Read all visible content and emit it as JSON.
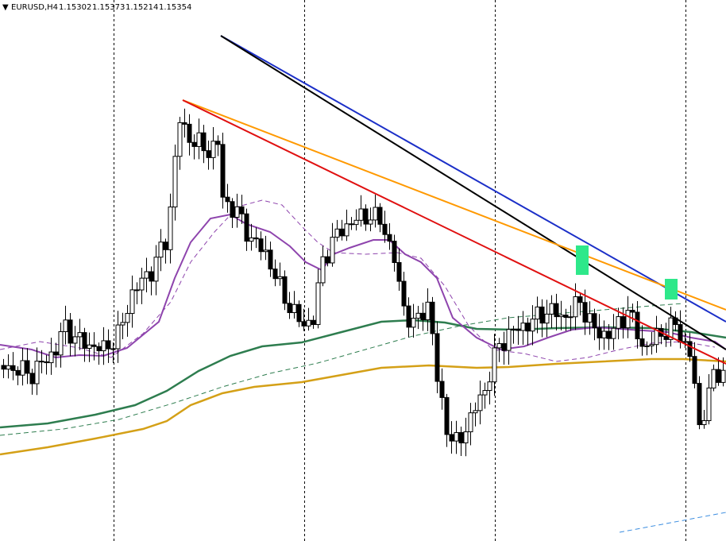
{
  "header": {
    "symbol": "EURUSD,H4",
    "quotes": [
      1.15302,
      1.15373,
      1.15214,
      1.15354
    ]
  }
}
